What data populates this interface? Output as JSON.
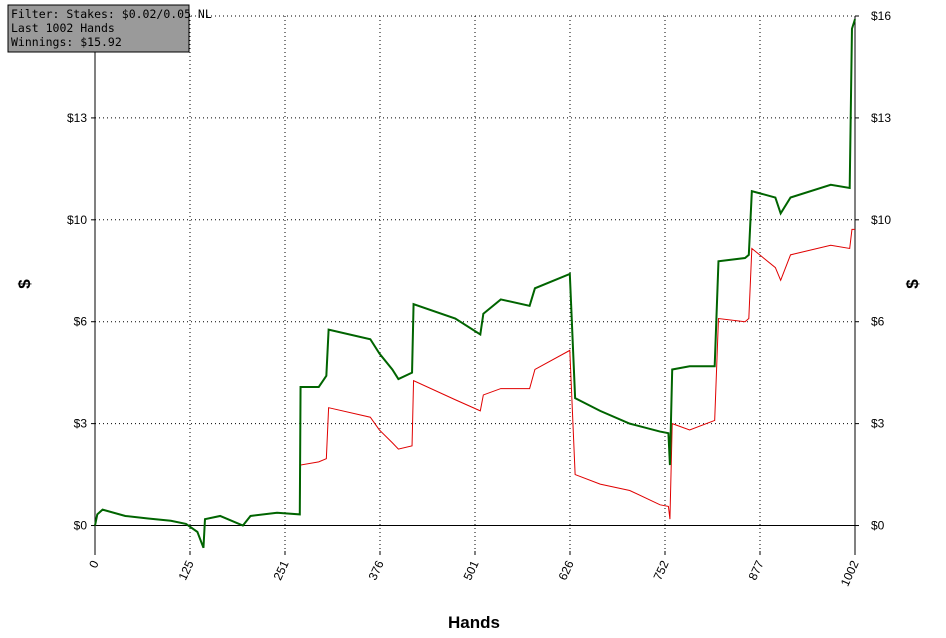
{
  "chart_data": {
    "type": "line",
    "filter_box": [
      "Filter: Stakes: $0.02/0.05 NL",
      "Last  1002 Hands",
      "Winnings: $15.92"
    ],
    "x_label": "Hands",
    "y_label": "$",
    "y2_label": "$",
    "x": [
      0,
      3,
      10,
      40,
      70,
      100,
      120,
      135,
      143,
      145,
      165,
      195,
      205,
      240,
      270,
      271,
      295,
      305,
      308,
      363,
      375,
      392,
      400,
      418,
      420,
      475,
      508,
      512,
      535,
      573,
      580,
      626,
      633,
      666,
      705,
      745,
      756,
      758,
      761,
      784,
      817,
      822,
      857,
      862,
      866,
      897,
      904,
      917,
      970,
      995,
      998,
      1002
    ],
    "series": [
      {
        "color": "#006400",
        "values": [
          0,
          0.35,
          0.5,
          0.3,
          0.22,
          0.15,
          0.05,
          -0.2,
          -0.7,
          0.2,
          0.3,
          0.0,
          0.3,
          0.4,
          0.35,
          4.35,
          4.35,
          4.7,
          6.15,
          5.85,
          5.4,
          4.9,
          4.6,
          4.8,
          6.95,
          6.5,
          6.0,
          6.65,
          7.1,
          6.9,
          7.45,
          7.9,
          4.0,
          3.6,
          3.2,
          2.95,
          2.9,
          1.9,
          4.9,
          5.0,
          5.0,
          8.3,
          8.4,
          8.5,
          10.5,
          10.3,
          9.8,
          10.3,
          10.7,
          10.6,
          15.6,
          15.9
        ]
      },
      {
        "color": "#e00000",
        "values": [
          0,
          0.35,
          0.5,
          0.3,
          0.22,
          0.15,
          0.05,
          -0.2,
          -0.7,
          0.2,
          0.3,
          0.0,
          0.3,
          0.4,
          0.35,
          1.9,
          2.0,
          2.1,
          3.7,
          3.4,
          3.0,
          2.6,
          2.4,
          2.5,
          4.55,
          3.95,
          3.6,
          4.1,
          4.3,
          4.3,
          4.9,
          5.5,
          1.6,
          1.3,
          1.1,
          0.65,
          0.6,
          0.2,
          3.2,
          3.0,
          3.3,
          6.5,
          6.4,
          6.5,
          8.7,
          8.1,
          7.7,
          8.5,
          8.8,
          8.7,
          9.3,
          9.3
        ]
      }
    ],
    "xlim": [
      0,
      1002
    ],
    "xticks": [
      0,
      {
        "value": 125.25,
        "label": "125"
      },
      {
        "value": 250.5,
        "label": "251"
      },
      {
        "value": 375.75,
        "label": "376"
      },
      501,
      {
        "value": 626.25,
        "label": "626"
      },
      {
        "value": 751.5,
        "label": "752"
      },
      {
        "value": 876.75,
        "label": "877"
      },
      1002
    ],
    "ylim": [
      -0.8,
      16
    ],
    "yticks": [
      {
        "value": 0,
        "label": "$0"
      },
      {
        "value": 3.2,
        "label": "$3"
      },
      {
        "value": 6.4,
        "label": "$6"
      },
      {
        "value": 9.6,
        "label": "$10"
      },
      {
        "value": 12.8,
        "label": "$13"
      },
      {
        "value": 16,
        "label": "$16"
      }
    ],
    "grid": true
  }
}
